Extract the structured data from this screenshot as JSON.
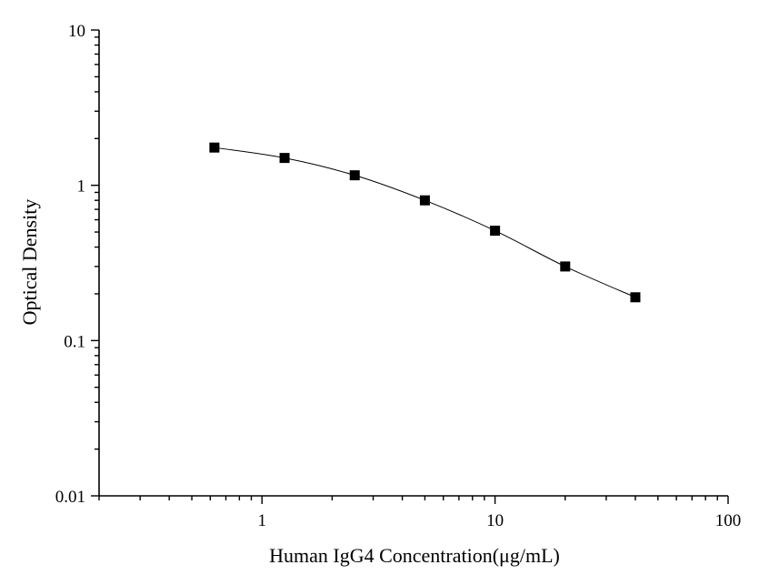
{
  "chart_data": {
    "type": "scatter",
    "title": "",
    "xlabel": "Human IgG4 Concentration(μg/mL)",
    "ylabel": "Optical Density",
    "xscale": "log",
    "yscale": "log",
    "xlim": [
      0.2,
      100
    ],
    "ylim": [
      0.01,
      10
    ],
    "x_tick_labels": [
      "1",
      "10",
      "100"
    ],
    "x_tick_values": [
      1,
      10,
      100
    ],
    "y_tick_labels": [
      "0.01",
      "0.1",
      "1",
      "10"
    ],
    "y_tick_values": [
      0.01,
      0.1,
      1,
      10
    ],
    "grid": false,
    "legend": "none",
    "marker": "square",
    "line": "smooth",
    "color": "#000000",
    "series": [
      {
        "x": [
          0.625,
          1.25,
          2.5,
          5,
          10,
          20,
          40
        ],
        "y": [
          1.75,
          1.5,
          1.16,
          0.8,
          0.51,
          0.3,
          0.19
        ]
      }
    ]
  }
}
